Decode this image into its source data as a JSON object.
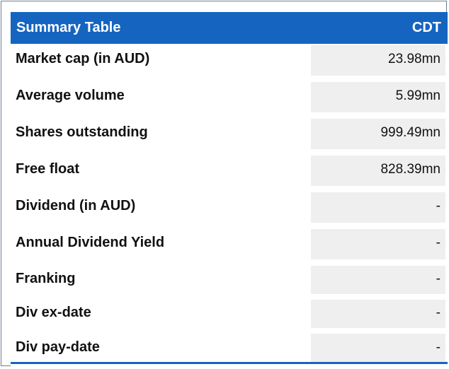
{
  "table": {
    "title": "Summary Table",
    "ticker": "CDT",
    "rows": [
      {
        "label": "Market cap (in AUD)",
        "value": "23.98mn"
      },
      {
        "label": "Average volume",
        "value": "5.99mn"
      },
      {
        "label": "Shares outstanding",
        "value": "999.49mn"
      },
      {
        "label": "Free float",
        "value": "828.39mn"
      },
      {
        "label": "Dividend (in AUD)",
        "value": "-"
      },
      {
        "label": "Annual Dividend Yield",
        "value": "-"
      },
      {
        "label": "Franking",
        "value": "-"
      },
      {
        "label": "Div ex-date",
        "value": "-"
      },
      {
        "label": "Div pay-date",
        "value": "-"
      }
    ]
  },
  "colors": {
    "header_background": "#1565c0",
    "header_text": "#ffffff",
    "value_cell_background": "#efefef"
  }
}
